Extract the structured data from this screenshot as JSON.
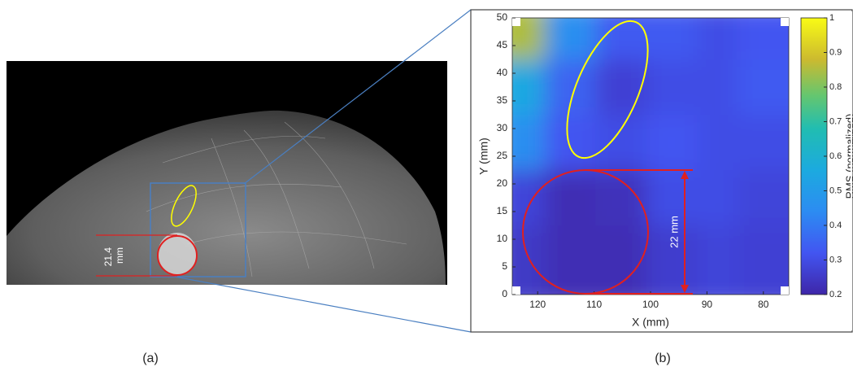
{
  "figure_a": {
    "panel_label": "(a)",
    "annotation": [
      "21.4",
      "mm"
    ]
  },
  "chart_data": {
    "type": "heatmap",
    "panel_label": "(b)",
    "x_label": "X (mm)",
    "y_label": "Y (mm)",
    "colorbar_label": "RMS (normalized)",
    "annotation": "22 mm",
    "x": [
      121,
      112,
      103,
      94,
      85,
      78
    ],
    "y": [
      45,
      35,
      25,
      15,
      5
    ],
    "z": [
      [
        0.85,
        0.45,
        0.33,
        0.33,
        0.3,
        0.32
      ],
      [
        0.55,
        0.35,
        0.27,
        0.3,
        0.3,
        0.33
      ],
      [
        0.45,
        0.32,
        0.3,
        0.32,
        0.3,
        0.3
      ],
      [
        0.28,
        0.22,
        0.23,
        0.3,
        0.3,
        0.28
      ],
      [
        0.25,
        0.22,
        0.22,
        0.26,
        0.28,
        0.27
      ]
    ],
    "xlim": [
      124.5,
      75.5
    ],
    "ylim": [
      0,
      50
    ],
    "xticks": [
      120,
      110,
      100,
      90,
      80
    ],
    "yticks": [
      0,
      5,
      10,
      15,
      20,
      25,
      30,
      35,
      40,
      45,
      50
    ],
    "clim": [
      0.2,
      1
    ],
    "cticks": [
      0.2,
      0.3,
      0.4,
      0.5,
      0.6,
      0.7,
      0.8,
      0.9,
      1
    ]
  }
}
